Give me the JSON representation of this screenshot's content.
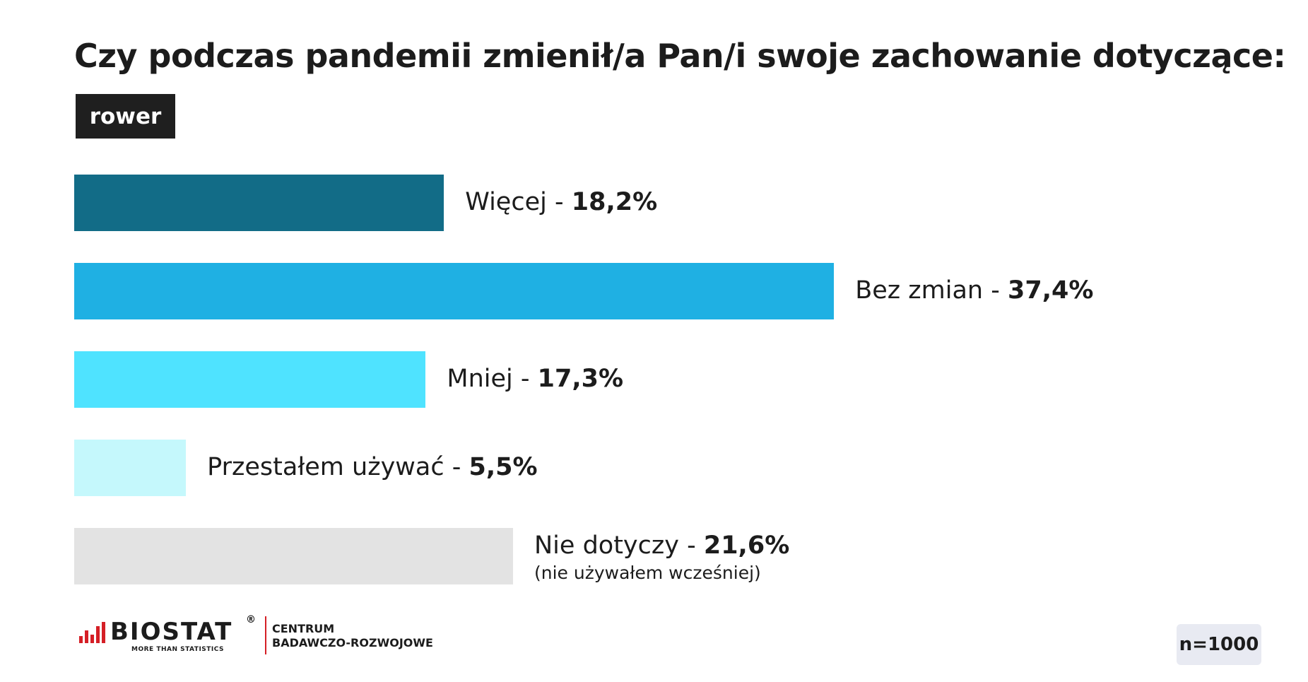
{
  "title": "Czy podczas pandemii zmienił/a Pan/i swoje zachowanie dotyczące:",
  "tag": "rower",
  "chart_data": {
    "type": "bar",
    "orientation": "horizontal",
    "title": "Czy podczas pandemii zmienił/a Pan/i swoje zachowanie dotyczące:",
    "subtitle": "rower",
    "categories": [
      "Więcej",
      "Bez zmian",
      "Mniej",
      "Przestałem używać",
      "Nie dotyczy"
    ],
    "values": [
      18.2,
      37.4,
      17.3,
      5.5,
      21.6
    ],
    "value_labels": [
      "18,2%",
      "37,4%",
      "17,3%",
      "5,5%",
      "21,6%"
    ],
    "notes": [
      "",
      "",
      "",
      "",
      "(nie używałem wcześniej)"
    ],
    "colors": [
      "#126c87",
      "#1fb0e3",
      "#4fe3ff",
      "#c5f8fc",
      "#e3e3e3"
    ],
    "separator": "-",
    "grid": false,
    "legend": "none"
  },
  "logo": {
    "name": "BIOSTAT",
    "tagline": "MORE THAN STATISTICS",
    "registered": "®",
    "center_line1": "CENTRUM",
    "center_line2": "BADAWCZO-ROZWOJOWE",
    "accent_color": "#d51f26"
  },
  "sample_size": "n=1000"
}
